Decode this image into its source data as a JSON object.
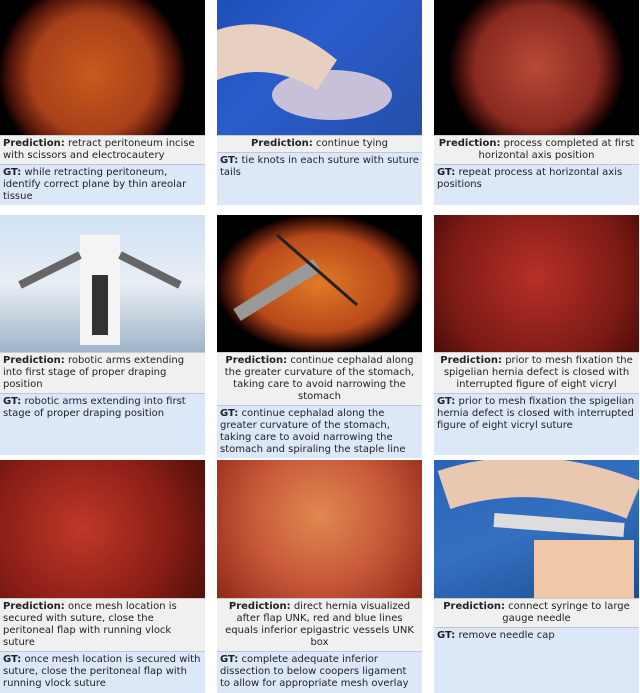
{
  "labels": {
    "prediction": "Prediction:",
    "gt": "GT:"
  },
  "cells": [
    {
      "prediction": "retract peritoneum incise with scissors and electrocautery",
      "gt": "while retracting peritoneum, identify correct plane by thin areolar tissue"
    },
    {
      "prediction": "continue tying",
      "gt": "tie knots in each suture with suture tails"
    },
    {
      "prediction": "process completed at first horizontal axis position",
      "gt": "repeat process at horizontal axis positions"
    },
    {
      "prediction": "robotic arms extending into first stage of proper draping position",
      "gt": "robotic arms extending into first stage of proper draping position"
    },
    {
      "prediction": "continue cephalad along the greater curvature of the stomach, taking care to avoid narrowing the stomach",
      "gt": "continue cephalad along the greater curvature of the stomach, taking care to avoid narrowing the stomach and spiraling the staple line"
    },
    {
      "prediction": "prior to mesh fixation the spigelian hernia defect is closed with interrupted figure of eight vicryl",
      "gt": "prior to mesh fixation the spigelian hernia defect is closed with interrupted figure of eight vicryl suture"
    },
    {
      "prediction": "once mesh location is secured with suture, close the peritoneal flap with running vlock suture",
      "gt": "once mesh location is secured with suture, close the peritoneal flap with running vlock suture"
    },
    {
      "prediction": "direct hernia visualized after flap UNK, red and blue lines equals inferior epigastric vessels UNK box",
      "gt": "complete adequate inferior dissection to below coopers ligament to allow for appropriate mesh overlay"
    },
    {
      "prediction": "connect syringe to large gauge needle",
      "gt": "remove needle cap"
    }
  ]
}
